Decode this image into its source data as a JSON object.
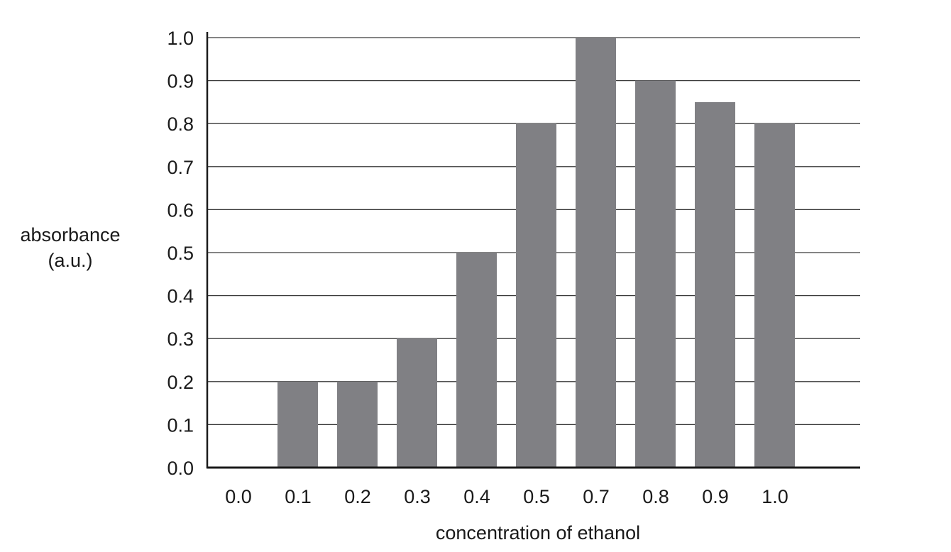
{
  "chart_data": {
    "type": "bar",
    "categories": [
      "0.0",
      "0.1",
      "0.2",
      "0.3",
      "0.4",
      "0.5",
      "0.7",
      "0.8",
      "0.9",
      "1.0"
    ],
    "values": [
      0.0,
      0.2,
      0.2,
      0.3,
      0.5,
      0.8,
      1.0,
      0.9,
      0.85,
      0.8
    ],
    "xlabel": "concentration of ethanol",
    "ylabel_lines": [
      "absorbance",
      "(a.u.)"
    ],
    "ylim": [
      0.0,
      1.0
    ],
    "yticks": [
      "0.0",
      "0.1",
      "0.2",
      "0.3",
      "0.4",
      "0.5",
      "0.6",
      "0.7",
      "0.8",
      "0.9",
      "1.0"
    ],
    "grid": "horizontal",
    "bar_color": "#808084",
    "axis_color": "#1a1a1a"
  }
}
